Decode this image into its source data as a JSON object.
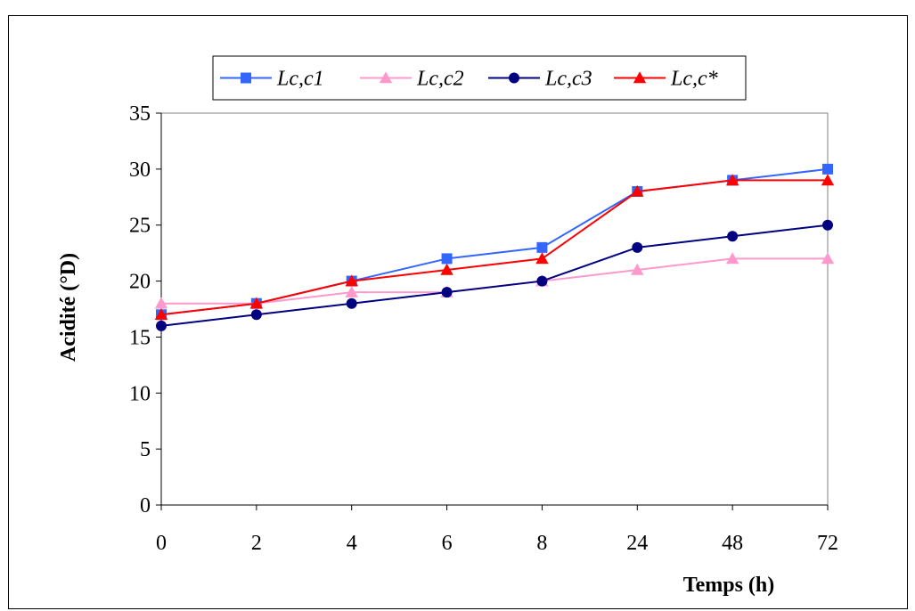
{
  "chart_data": {
    "type": "line",
    "categories": [
      "0",
      "2",
      "4",
      "6",
      "8",
      "24",
      "48",
      "72"
    ],
    "ylabel": "Acidité (°D)",
    "xlabel": "Temps (h)",
    "ylim": [
      0,
      35
    ],
    "yticks": [
      "0",
      "5",
      "10",
      "15",
      "20",
      "25",
      "30",
      "35"
    ],
    "grid": false,
    "legend_position": "top",
    "series": [
      {
        "name": "Lc,c1",
        "color": "#3366ff",
        "marker": "square",
        "values": [
          17,
          18,
          20,
          22,
          23,
          28,
          29,
          30
        ]
      },
      {
        "name": "Lc,c2",
        "color": "#ff99cc",
        "marker": "triangle",
        "values": [
          18,
          18,
          19,
          19,
          20,
          21,
          22,
          22
        ]
      },
      {
        "name": "Lc,c3",
        "color": "#000080",
        "marker": "circle",
        "values": [
          16,
          17,
          18,
          19,
          20,
          23,
          24,
          25
        ]
      },
      {
        "name": "Lc,c*",
        "color": "#ff0000",
        "marker": "triangle",
        "values": [
          17,
          18,
          20,
          21,
          22,
          28,
          29,
          29
        ]
      }
    ]
  }
}
